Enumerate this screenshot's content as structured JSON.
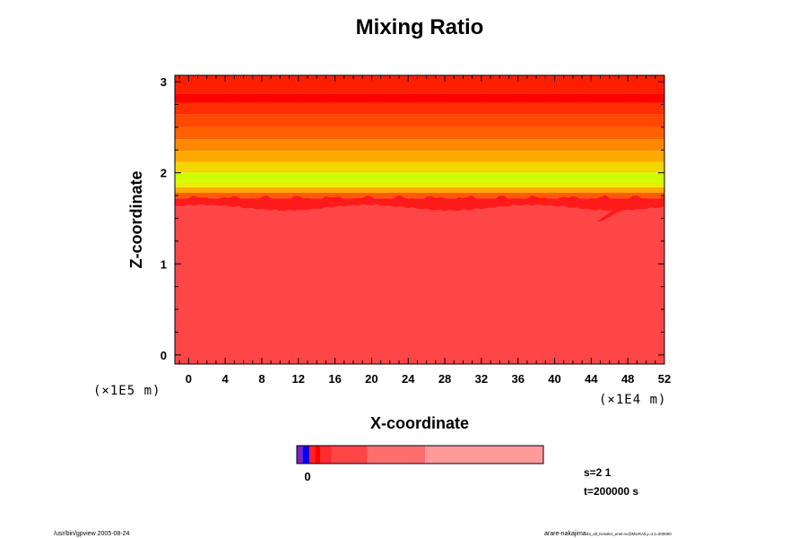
{
  "footer": {
    "left": "/usr/bin/gpview 2005-08-24",
    "right_main": "arare-nakajima",
    "right_sub": "03_all_Kessler_enel.nc@MixRAll,y=2,t=200000"
  },
  "info": {
    "s": "s=2 1",
    "t": "t=200000 s"
  },
  "chart_data": {
    "type": "heatmap",
    "title": "Mixing Ratio",
    "xlabel": "X-coordinate",
    "ylabel": "Z-coordinate",
    "x_exponent_label": "(×1E4 m)",
    "y_exponent_label": "(×1E5 m)",
    "xlim": [
      -1.5,
      52
    ],
    "ylim": [
      -0.1,
      3.07
    ],
    "x_ticks": [
      0,
      4,
      8,
      12,
      16,
      20,
      24,
      28,
      32,
      36,
      40,
      44,
      48,
      52
    ],
    "y_ticks": [
      0,
      1,
      2,
      3
    ],
    "x_minor_step": 1,
    "y_minor_step": 0.25,
    "bands": [
      {
        "z0": 2.87,
        "z1": 3.07,
        "color": "#ff1f00"
      },
      {
        "z0": 2.77,
        "z1": 2.87,
        "color": "#ff0000"
      },
      {
        "z0": 2.64,
        "z1": 2.77,
        "color": "#ff2e00"
      },
      {
        "z0": 2.5,
        "z1": 2.64,
        "color": "#ff4800"
      },
      {
        "z0": 2.37,
        "z1": 2.5,
        "color": "#ff6000"
      },
      {
        "z0": 2.24,
        "z1": 2.37,
        "color": "#ff8800"
      },
      {
        "z0": 2.12,
        "z1": 2.24,
        "color": "#ffaa00"
      },
      {
        "z0": 2.0,
        "z1": 2.12,
        "color": "#f2d600"
      },
      {
        "z0": 1.9,
        "z1": 2.0,
        "color": "#ccff00"
      },
      {
        "z0": 1.84,
        "z1": 1.9,
        "color": "#e8f000"
      },
      {
        "z0": 1.78,
        "z1": 1.84,
        "color": "#ffaa00"
      },
      {
        "z0": 1.72,
        "z1": 1.78,
        "color": "#ff5a00"
      },
      {
        "z0": 1.66,
        "z1": 1.72,
        "color": "#ff1e1e"
      },
      {
        "z0": -0.1,
        "z1": 1.66,
        "color": "#ff4646"
      }
    ],
    "colorbar": {
      "segments": [
        {
          "weight": 0.025,
          "color": "#7722cc"
        },
        {
          "weight": 0.025,
          "color": "#0000ff"
        },
        {
          "weight": 0.025,
          "color": "#ff2222"
        },
        {
          "weight": 0.02,
          "color": "#ff0000"
        },
        {
          "weight": 0.045,
          "color": "#ff2d2d"
        },
        {
          "weight": 0.145,
          "color": "#ff4646"
        },
        {
          "weight": 0.235,
          "color": "#ff6e6e"
        },
        {
          "weight": 0.48,
          "color": "#ff9a9a"
        }
      ],
      "tick_labels": [
        "0"
      ]
    }
  }
}
